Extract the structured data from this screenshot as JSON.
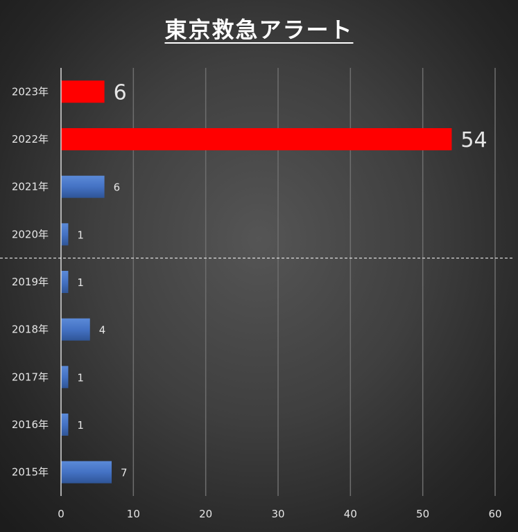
{
  "chart_data": {
    "type": "bar",
    "orientation": "horizontal",
    "title": "東京救急アラート",
    "categories": [
      "2023年",
      "2022年",
      "2021年",
      "2020年",
      "2019年",
      "2018年",
      "2017年",
      "2016年",
      "2015年"
    ],
    "values": [
      6,
      54,
      6,
      1,
      1,
      4,
      1,
      1,
      7
    ],
    "highlighted": [
      true,
      true,
      false,
      false,
      false,
      false,
      false,
      false,
      false
    ],
    "xlim": [
      0,
      60
    ],
    "xticks": [
      0,
      10,
      20,
      30,
      40,
      50,
      60
    ],
    "xlabel": "",
    "ylabel": "",
    "grid": true,
    "legend": "none",
    "divider_between": [
      "2020年",
      "2019年"
    ],
    "colors": {
      "highlight": "#ff0000",
      "normal": "#4472c4",
      "normal_light": "#5b8ad8",
      "normal_dark": "#2f5597",
      "gridline": "#6e6e6e",
      "axis": "#d9d9d9",
      "divider": "#ffffff",
      "text": "#e6e6e6"
    }
  }
}
